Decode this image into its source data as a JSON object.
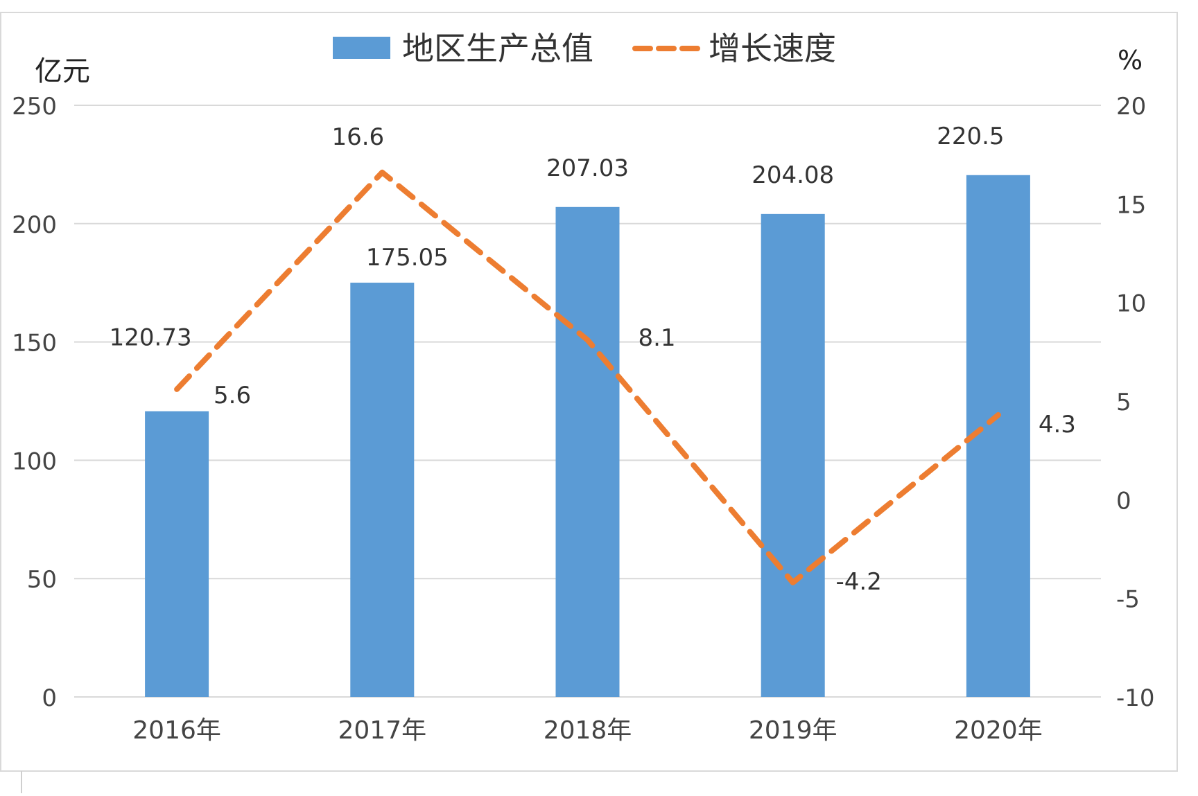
{
  "chart_data": {
    "type": "bar",
    "categories": [
      "2016年",
      "2017年",
      "2018年",
      "2019年",
      "2020年"
    ],
    "series": [
      {
        "name": "地区生产总值",
        "type": "bar",
        "axis": "left",
        "color": "#5B9BD5",
        "values": [
          120.73,
          175.05,
          207.03,
          204.08,
          220.5
        ],
        "labels": [
          "120.73",
          "175.05",
          "207.03",
          "204.08",
          "220.5"
        ]
      },
      {
        "name": "增长速度",
        "type": "line",
        "style": "dashed",
        "axis": "right",
        "color": "#ED7D31",
        "values": [
          5.6,
          16.6,
          8.1,
          -4.2,
          4.3
        ],
        "labels": [
          "5.6",
          "16.6",
          "8.1",
          "-4.2",
          "4.3"
        ]
      }
    ],
    "y_left": {
      "unit_label": "亿元",
      "range": [
        0,
        250
      ],
      "ticks": [
        0,
        50,
        100,
        150,
        200,
        250
      ]
    },
    "y_right": {
      "unit_label": "%",
      "range": [
        -10,
        20
      ],
      "ticks": [
        -10,
        -5,
        0,
        5,
        10,
        15,
        20
      ]
    },
    "grid": true,
    "legend_position": "top-center"
  }
}
